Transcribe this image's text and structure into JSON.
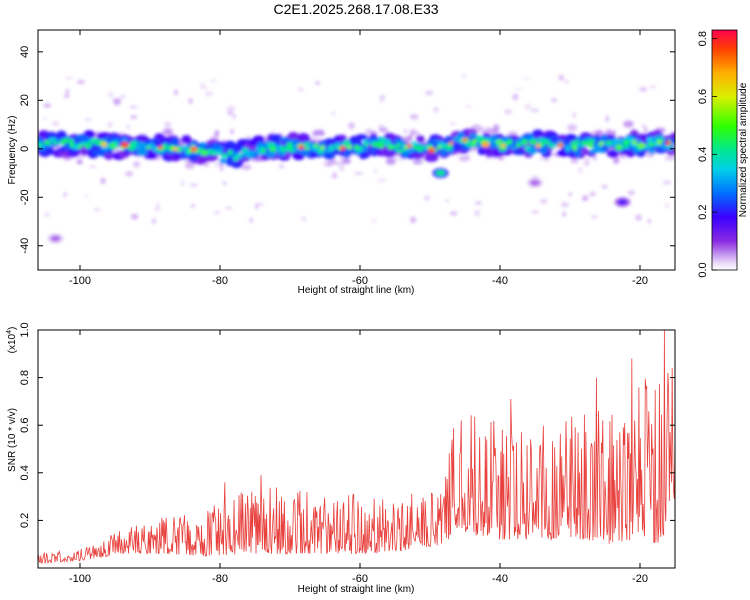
{
  "title": "C2E1.2025.268.17.08.E33",
  "chart_data": [
    {
      "type": "heatmap",
      "xlabel": "Height of straight line (km)",
      "ylabel": "Frequency (Hz)",
      "xlim": [
        -106,
        -15
      ],
      "ylim": [
        -50,
        49
      ],
      "xticks": [
        -100,
        -80,
        -60,
        -40,
        -20
      ],
      "yticks": [
        -40,
        -20,
        0,
        20,
        40
      ],
      "band_center_hz": [
        [
          -106,
          2
        ],
        [
          -100,
          2
        ],
        [
          -95,
          1
        ],
        [
          -90,
          1
        ],
        [
          -85,
          0
        ],
        [
          -80,
          -2
        ],
        [
          -78,
          -3
        ],
        [
          -75,
          0
        ],
        [
          -70,
          1
        ],
        [
          -65,
          0
        ],
        [
          -60,
          1
        ],
        [
          -57,
          2
        ],
        [
          -55,
          1
        ],
        [
          -50,
          0
        ],
        [
          -45,
          3
        ],
        [
          -40,
          2
        ],
        [
          -35,
          2
        ],
        [
          -30,
          1
        ],
        [
          -25,
          2
        ],
        [
          -20,
          2
        ],
        [
          -15,
          2
        ]
      ],
      "band_halfwidth_hz": 5,
      "features": [
        {
          "x": -48.5,
          "y": -10,
          "amp": 0.5
        },
        {
          "x": -22.5,
          "y": -22,
          "amp": 0.2
        },
        {
          "x": -35,
          "y": -14,
          "amp": 0.1
        },
        {
          "x": -103.5,
          "y": -37,
          "amp": 0.1
        }
      ],
      "colorbar": {
        "label": "Normalized spectral amplitude",
        "range": [
          0,
          0.83
        ],
        "ticks": [
          "0.0",
          "0.2",
          "0.4",
          "0.6",
          "0.8"
        ],
        "tick_values": [
          0.0,
          0.2,
          0.4,
          0.6,
          0.8
        ]
      }
    },
    {
      "type": "line",
      "xlabel": "Height of straight line (km)",
      "ylabel": "SNR (10 * v/v)",
      "exponent_label": "(x10",
      "exponent": "4",
      "exponent_close": ")",
      "xlim": [
        -106,
        -15
      ],
      "ylim": [
        0,
        1.0
      ],
      "xticks": [
        -100,
        -80,
        -60,
        -40,
        -20
      ],
      "yticks": [
        0.2,
        0.4,
        0.6,
        0.8,
        1.0
      ],
      "yticklabels": [
        "0.2",
        "0.4",
        "0.6",
        "0.8",
        "1.0"
      ],
      "color": "#e8403c",
      "envelope": {
        "x": [
          -106,
          -100,
          -94,
          -88,
          -82,
          -76,
          -70,
          -64,
          -58,
          -52,
          -48,
          -47,
          -44,
          -40,
          -36,
          -32,
          -28,
          -24,
          -20,
          -17,
          -15
        ],
        "base": [
          0.02,
          0.03,
          0.06,
          0.06,
          0.05,
          0.06,
          0.06,
          0.06,
          0.06,
          0.08,
          0.1,
          0.12,
          0.14,
          0.12,
          0.12,
          0.12,
          0.12,
          0.1,
          0.12,
          0.1,
          0.3
        ],
        "peak": [
          0.06,
          0.08,
          0.16,
          0.22,
          0.28,
          0.33,
          0.35,
          0.33,
          0.3,
          0.32,
          0.32,
          0.62,
          0.65,
          0.62,
          0.6,
          0.62,
          0.7,
          0.72,
          0.85,
          1.0,
          0.85
        ]
      },
      "highlights": [
        {
          "x": -38.5,
          "y": 0.71
        },
        {
          "x": -26.2,
          "y": 0.8
        },
        {
          "x": -21.2,
          "y": 0.88
        },
        {
          "x": -16.5,
          "y": 1.0
        },
        {
          "x": -16.0,
          "y": 0.82
        },
        {
          "x": -15.4,
          "y": 0.84
        },
        {
          "x": -79.3,
          "y": 0.36
        },
        {
          "x": -74.2,
          "y": 0.39
        },
        {
          "x": -45.5,
          "y": 0.62
        }
      ]
    }
  ]
}
